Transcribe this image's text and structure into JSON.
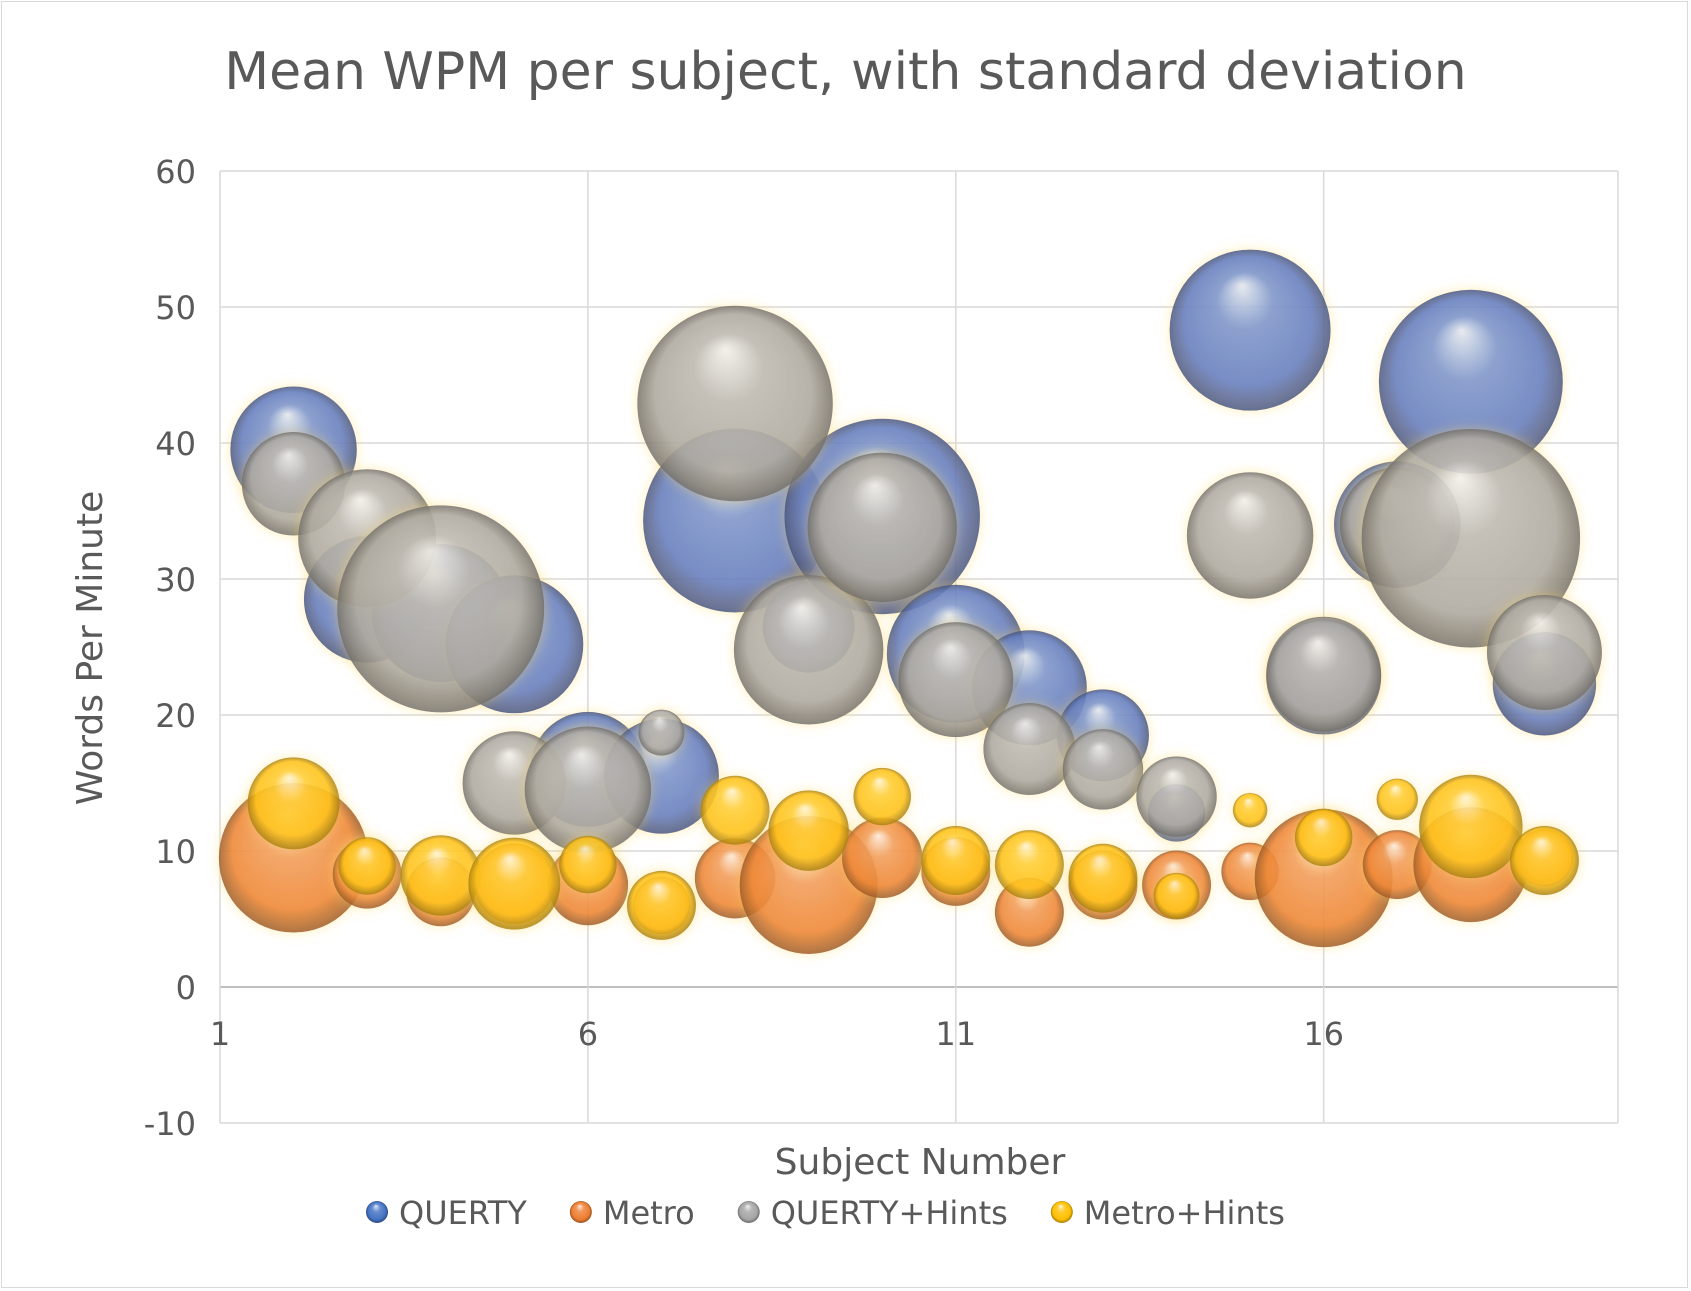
{
  "chart_data": {
    "type": "bubble",
    "title": "Mean WPM per subject, with standard deviation",
    "xlabel": "Subject Number",
    "ylabel": "Words Per Minute",
    "xlim": [
      1,
      20
    ],
    "ylim": [
      -10,
      60
    ],
    "xticks": [
      1,
      6,
      11,
      16
    ],
    "yticks": [
      -10,
      0,
      10,
      20,
      30,
      40,
      50,
      60
    ],
    "grid": true,
    "legend_position": "bottom",
    "series": [
      {
        "name": "QUERTY",
        "color": "#4472c4",
        "points": [
          {
            "x": 2,
            "y": 39.5,
            "size": 5.5
          },
          {
            "x": 3,
            "y": 28.5,
            "size": 5.5
          },
          {
            "x": 4,
            "y": 27.5,
            "size": 6
          },
          {
            "x": 5,
            "y": 25.2,
            "size": 6
          },
          {
            "x": 6,
            "y": 16,
            "size": 5
          },
          {
            "x": 7,
            "y": 15.5,
            "size": 5
          },
          {
            "x": 8,
            "y": 34.3,
            "size": 8
          },
          {
            "x": 9,
            "y": 26.5,
            "size": 4
          },
          {
            "x": 10,
            "y": 34.6,
            "size": 8.5
          },
          {
            "x": 11,
            "y": 24.5,
            "size": 6
          },
          {
            "x": 12,
            "y": 22,
            "size": 5
          },
          {
            "x": 13,
            "y": 18.5,
            "size": 4
          },
          {
            "x": 14,
            "y": 12.8,
            "size": 2.5
          },
          {
            "x": 15,
            "y": 48.3,
            "size": 7
          },
          {
            "x": 16,
            "y": 22.8,
            "size": 5
          },
          {
            "x": 17,
            "y": 34,
            "size": 5.5
          },
          {
            "x": 18,
            "y": 44.5,
            "size": 8
          },
          {
            "x": 19,
            "y": 22.3,
            "size": 4.5
          }
        ]
      },
      {
        "name": "Metro",
        "color": "#ed7d31",
        "points": [
          {
            "x": 2,
            "y": 9.5,
            "size": 6.5
          },
          {
            "x": 3,
            "y": 8.3,
            "size": 3
          },
          {
            "x": 4,
            "y": 7,
            "size": 3
          },
          {
            "x": 5,
            "y": 7.6,
            "size": 3.5
          },
          {
            "x": 6,
            "y": 7.5,
            "size": 3.5
          },
          {
            "x": 7,
            "y": 6,
            "size": 2.5
          },
          {
            "x": 8,
            "y": 8,
            "size": 3.5
          },
          {
            "x": 9,
            "y": 7.5,
            "size": 6
          },
          {
            "x": 10,
            "y": 9.5,
            "size": 3.5
          },
          {
            "x": 11,
            "y": 8.5,
            "size": 3
          },
          {
            "x": 12,
            "y": 5.5,
            "size": 3
          },
          {
            "x": 13,
            "y": 7.5,
            "size": 3
          },
          {
            "x": 14,
            "y": 7.5,
            "size": 3
          },
          {
            "x": 15,
            "y": 8.5,
            "size": 2.5
          },
          {
            "x": 16,
            "y": 8,
            "size": 6
          },
          {
            "x": 17,
            "y": 9,
            "size": 3
          },
          {
            "x": 18,
            "y": 9,
            "size": 5
          },
          {
            "x": 19,
            "y": 9.5,
            "size": 2.5
          }
        ]
      },
      {
        "name": "QUERTY+Hints",
        "color": "#a5a5a5",
        "points": [
          {
            "x": 2,
            "y": 37,
            "size": 4.5
          },
          {
            "x": 3,
            "y": 33,
            "size": 6
          },
          {
            "x": 4,
            "y": 27.8,
            "size": 9
          },
          {
            "x": 5,
            "y": 15,
            "size": 4.5
          },
          {
            "x": 6,
            "y": 14.5,
            "size": 5.5
          },
          {
            "x": 7,
            "y": 18.7,
            "size": 2
          },
          {
            "x": 8,
            "y": 42.9,
            "size": 8.5
          },
          {
            "x": 9,
            "y": 24.8,
            "size": 6.5
          },
          {
            "x": 10,
            "y": 33.8,
            "size": 6.5
          },
          {
            "x": 11,
            "y": 22.6,
            "size": 5
          },
          {
            "x": 12,
            "y": 17.5,
            "size": 4
          },
          {
            "x": 13,
            "y": 16,
            "size": 3.5
          },
          {
            "x": 14,
            "y": 14,
            "size": 3.5
          },
          {
            "x": 15,
            "y": 33.2,
            "size": 5.5
          },
          {
            "x": 16,
            "y": 23,
            "size": 5
          },
          {
            "x": 17,
            "y": 34,
            "size": 5
          },
          {
            "x": 18,
            "y": 33,
            "size": 9.5
          },
          {
            "x": 19,
            "y": 24.6,
            "size": 5
          }
        ]
      },
      {
        "name": "Metro+Hints",
        "color": "#ffc000",
        "points": [
          {
            "x": 2,
            "y": 13.5,
            "size": 4
          },
          {
            "x": 3,
            "y": 8.9,
            "size": 2.5
          },
          {
            "x": 4,
            "y": 8.2,
            "size": 3.5
          },
          {
            "x": 5,
            "y": 7.6,
            "size": 4
          },
          {
            "x": 6,
            "y": 9,
            "size": 2.5
          },
          {
            "x": 7,
            "y": 6,
            "size": 3
          },
          {
            "x": 8,
            "y": 13,
            "size": 3
          },
          {
            "x": 9,
            "y": 11.5,
            "size": 3.5
          },
          {
            "x": 10,
            "y": 14,
            "size": 2.5
          },
          {
            "x": 11,
            "y": 9.3,
            "size": 3
          },
          {
            "x": 12,
            "y": 9,
            "size": 3
          },
          {
            "x": 13,
            "y": 8,
            "size": 3
          },
          {
            "x": 14,
            "y": 6.7,
            "size": 2
          },
          {
            "x": 15,
            "y": 13,
            "size": 1.5
          },
          {
            "x": 16,
            "y": 11,
            "size": 2.5
          },
          {
            "x": 17,
            "y": 13.8,
            "size": 1.8
          },
          {
            "x": 18,
            "y": 11.8,
            "size": 4.5
          },
          {
            "x": 19,
            "y": 9.3,
            "size": 3
          }
        ]
      }
    ]
  }
}
